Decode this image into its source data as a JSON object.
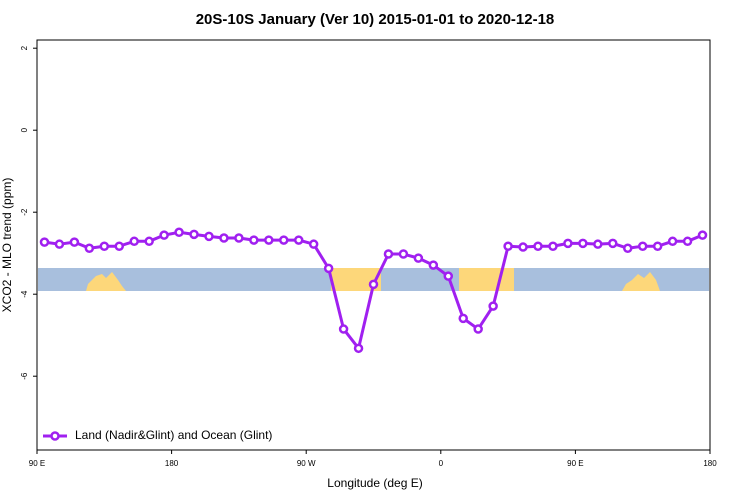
{
  "chart_data": {
    "type": "line",
    "title": "20S-10S January (Ver 10)   2015-01-01 to 2020-12-18",
    "x_label": "Longitude (deg E)",
    "y_label": "XCO2 - MLO trend (ppm)",
    "x": [
      95,
      105,
      115,
      125,
      135,
      145,
      155,
      165,
      175,
      185,
      195,
      205,
      215,
      225,
      235,
      245,
      255,
      265,
      275,
      285,
      295,
      305,
      315,
      325,
      335,
      345,
      355,
      365,
      375,
      385,
      395,
      405,
      415,
      425,
      435,
      445,
      455,
      465,
      475,
      485,
      495,
      505,
      515,
      525,
      535
    ],
    "series": [
      {
        "name": "Land (Nadir&Glint) and Ocean (Glint)",
        "color": "#a020f0",
        "values": [
          -2.73,
          -2.78,
          -2.73,
          -2.88,
          -2.83,
          -2.83,
          -2.71,
          -2.71,
          -2.56,
          -2.49,
          -2.54,
          -2.59,
          -2.63,
          -2.63,
          -2.68,
          -2.68,
          -2.68,
          -2.68,
          -2.78,
          -3.37,
          -4.85,
          -5.32,
          -3.76,
          -3.02,
          -3.02,
          -3.12,
          -3.29,
          -3.56,
          -4.59,
          -4.85,
          -4.29,
          -2.83,
          -2.85,
          -2.83,
          -2.83,
          -2.76,
          -2.76,
          -2.78,
          -2.76,
          -2.88,
          -2.83,
          -2.83,
          -2.71,
          -2.71,
          -2.56
        ]
      }
    ],
    "xlim": [
      90,
      540
    ],
    "xticks": [
      {
        "value": 90,
        "label": "90 E"
      },
      {
        "value": 180,
        "label": "180"
      },
      {
        "value": 270,
        "label": "90 W"
      },
      {
        "value": 360,
        "label": "0"
      },
      {
        "value": 450,
        "label": "90 E"
      },
      {
        "value": 540,
        "label": "180"
      }
    ],
    "ylim": [
      -7.8,
      2.2
    ],
    "yticks": [
      2,
      0,
      -2,
      -4,
      -6
    ],
    "legend": "bottom-left"
  }
}
